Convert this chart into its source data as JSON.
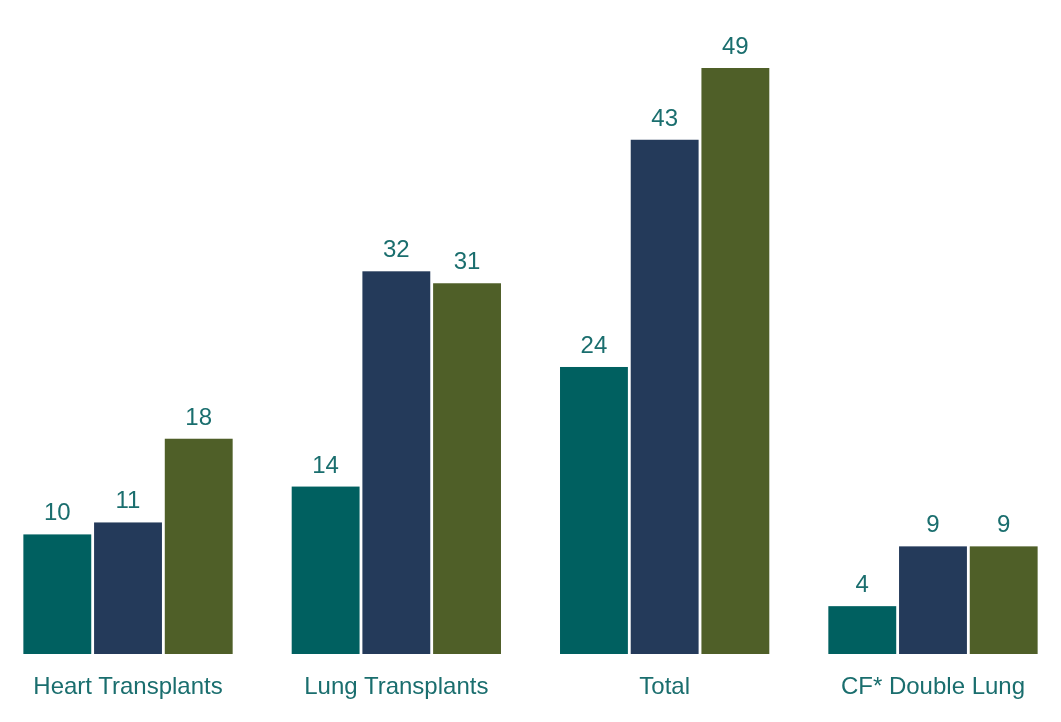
{
  "chart_data": {
    "type": "bar",
    "categories": [
      "Heart Transplants",
      "Lung Transplants",
      "Total",
      "CF* Double Lung"
    ],
    "series": [
      {
        "color": "#006060",
        "values": [
          10,
          14,
          24,
          4
        ]
      },
      {
        "color": "#243a5a",
        "values": [
          11,
          32,
          43,
          9
        ]
      },
      {
        "color": "#4f5f28",
        "values": [
          18,
          31,
          49,
          9
        ]
      }
    ],
    "data_labels": true
  }
}
